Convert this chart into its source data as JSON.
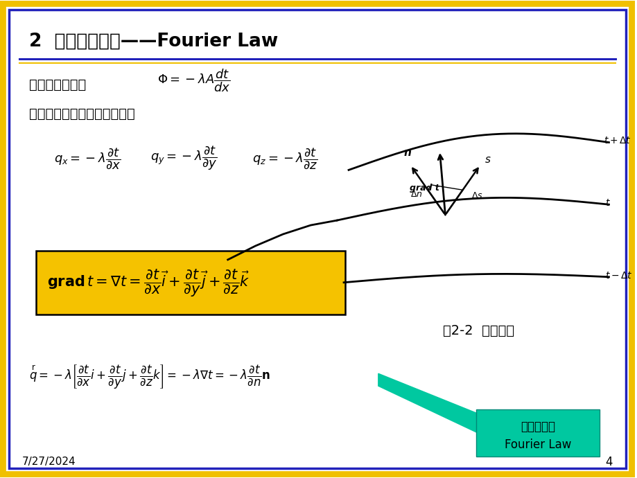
{
  "slide_bg": "#ffffff",
  "outer_border_color": "#f0c000",
  "inner_border_color": "#2222bb",
  "title_text": "2  导热基本定律——Fourier Law",
  "title_color": "#000000",
  "title_fontsize": 19,
  "separator_color_blue": "#2222bb",
  "separator_color_yellow": "#f0c000",
  "line1_chinese": "对于一维情况，",
  "line2_chinese": "对于三维直角坐标系情况，有",
  "yellow_box_color": "#f5c200",
  "callout_bg": "#00c8a0",
  "callout_text_line1": "通用形式的",
  "callout_text_line2": "Fourier Law",
  "callout_text_color": "#000000",
  "date_text": "7/27/2024",
  "page_num": "4",
  "caption_text": "图2-2  温度梯度"
}
